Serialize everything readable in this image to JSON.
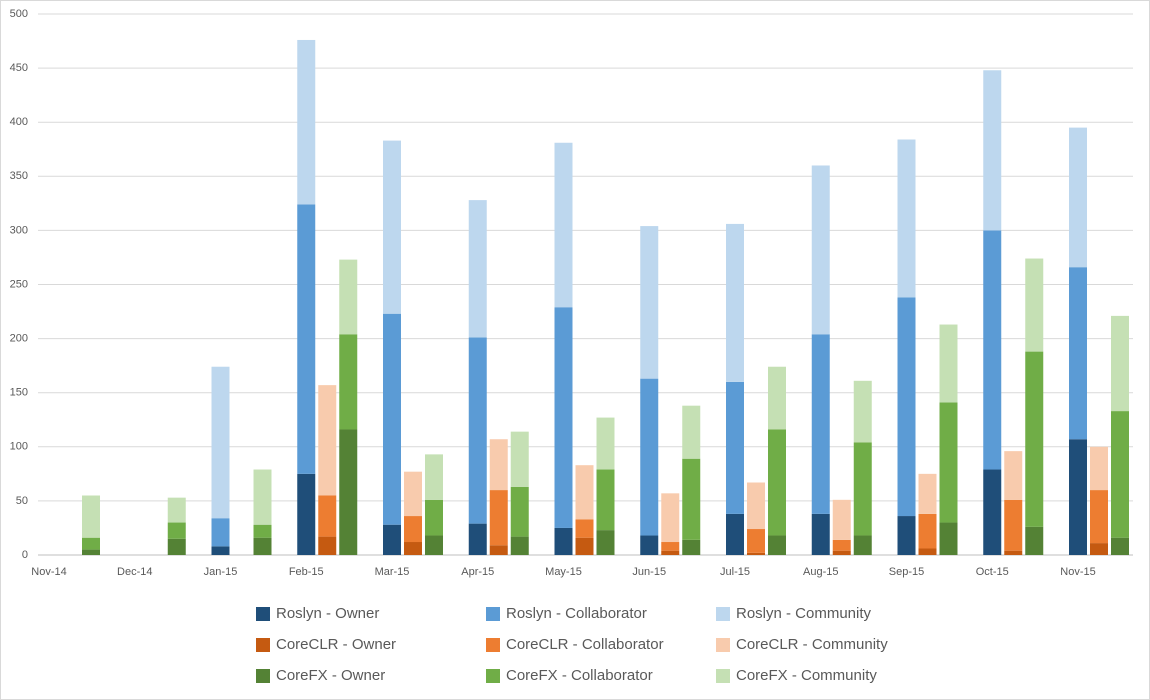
{
  "chart_data": {
    "type": "grouped-stacked-bar",
    "categories": [
      "Nov-14",
      "Dec-14",
      "Jan-15",
      "Feb-15",
      "Mar-15",
      "Apr-15",
      "May-15",
      "Jun-15",
      "Jul-15",
      "Aug-15",
      "Sep-15",
      "Oct-15",
      "Nov-15"
    ],
    "ylim": [
      0,
      500
    ],
    "yticks": [
      0,
      50,
      100,
      150,
      200,
      250,
      300,
      350,
      400,
      450,
      500
    ],
    "grid": true,
    "legend": "bottom",
    "series": [
      {
        "name": "Roslyn - Owner",
        "color": "#1f4e79",
        "stack": 0,
        "values": [
          null,
          null,
          8,
          75,
          28,
          29,
          25,
          18,
          38,
          38,
          36,
          79,
          107
        ]
      },
      {
        "name": "Roslyn - Collaborator",
        "color": "#5b9bd5",
        "stack": 0,
        "values": [
          null,
          null,
          26,
          249,
          195,
          172,
          204,
          145,
          122,
          166,
          202,
          221,
          159
        ]
      },
      {
        "name": "Roslyn - Community",
        "color": "#bdd7ee",
        "stack": 0,
        "values": [
          null,
          null,
          140,
          152,
          160,
          127,
          152,
          141,
          146,
          156,
          146,
          148,
          129
        ]
      },
      {
        "name": "CoreCLR - Owner",
        "color": "#c55a11",
        "stack": 1,
        "values": [
          null,
          null,
          null,
          17,
          12,
          9,
          16,
          4,
          2,
          4,
          6,
          4,
          11
        ]
      },
      {
        "name": "CoreCLR - Collaborator",
        "color": "#ed7d31",
        "stack": 1,
        "values": [
          null,
          null,
          null,
          38,
          24,
          51,
          17,
          8,
          22,
          10,
          32,
          47,
          49
        ]
      },
      {
        "name": "CoreCLR - Community",
        "color": "#f8cbad",
        "stack": 1,
        "values": [
          null,
          null,
          null,
          102,
          41,
          47,
          50,
          45,
          43,
          37,
          37,
          45,
          40
        ]
      },
      {
        "name": "CoreFX - Owner",
        "color": "#548235",
        "stack": 2,
        "values": [
          5,
          15,
          16,
          116,
          18,
          17,
          23,
          14,
          18,
          18,
          30,
          26,
          16
        ]
      },
      {
        "name": "CoreFX - Collaborator",
        "color": "#70ad47",
        "stack": 2,
        "values": [
          11,
          15,
          12,
          88,
          33,
          46,
          56,
          75,
          98,
          86,
          111,
          162,
          117
        ]
      },
      {
        "name": "CoreFX - Community",
        "color": "#c5e0b4",
        "stack": 2,
        "values": [
          39,
          23,
          51,
          69,
          42,
          51,
          48,
          49,
          58,
          57,
          72,
          86,
          88
        ]
      }
    ]
  }
}
